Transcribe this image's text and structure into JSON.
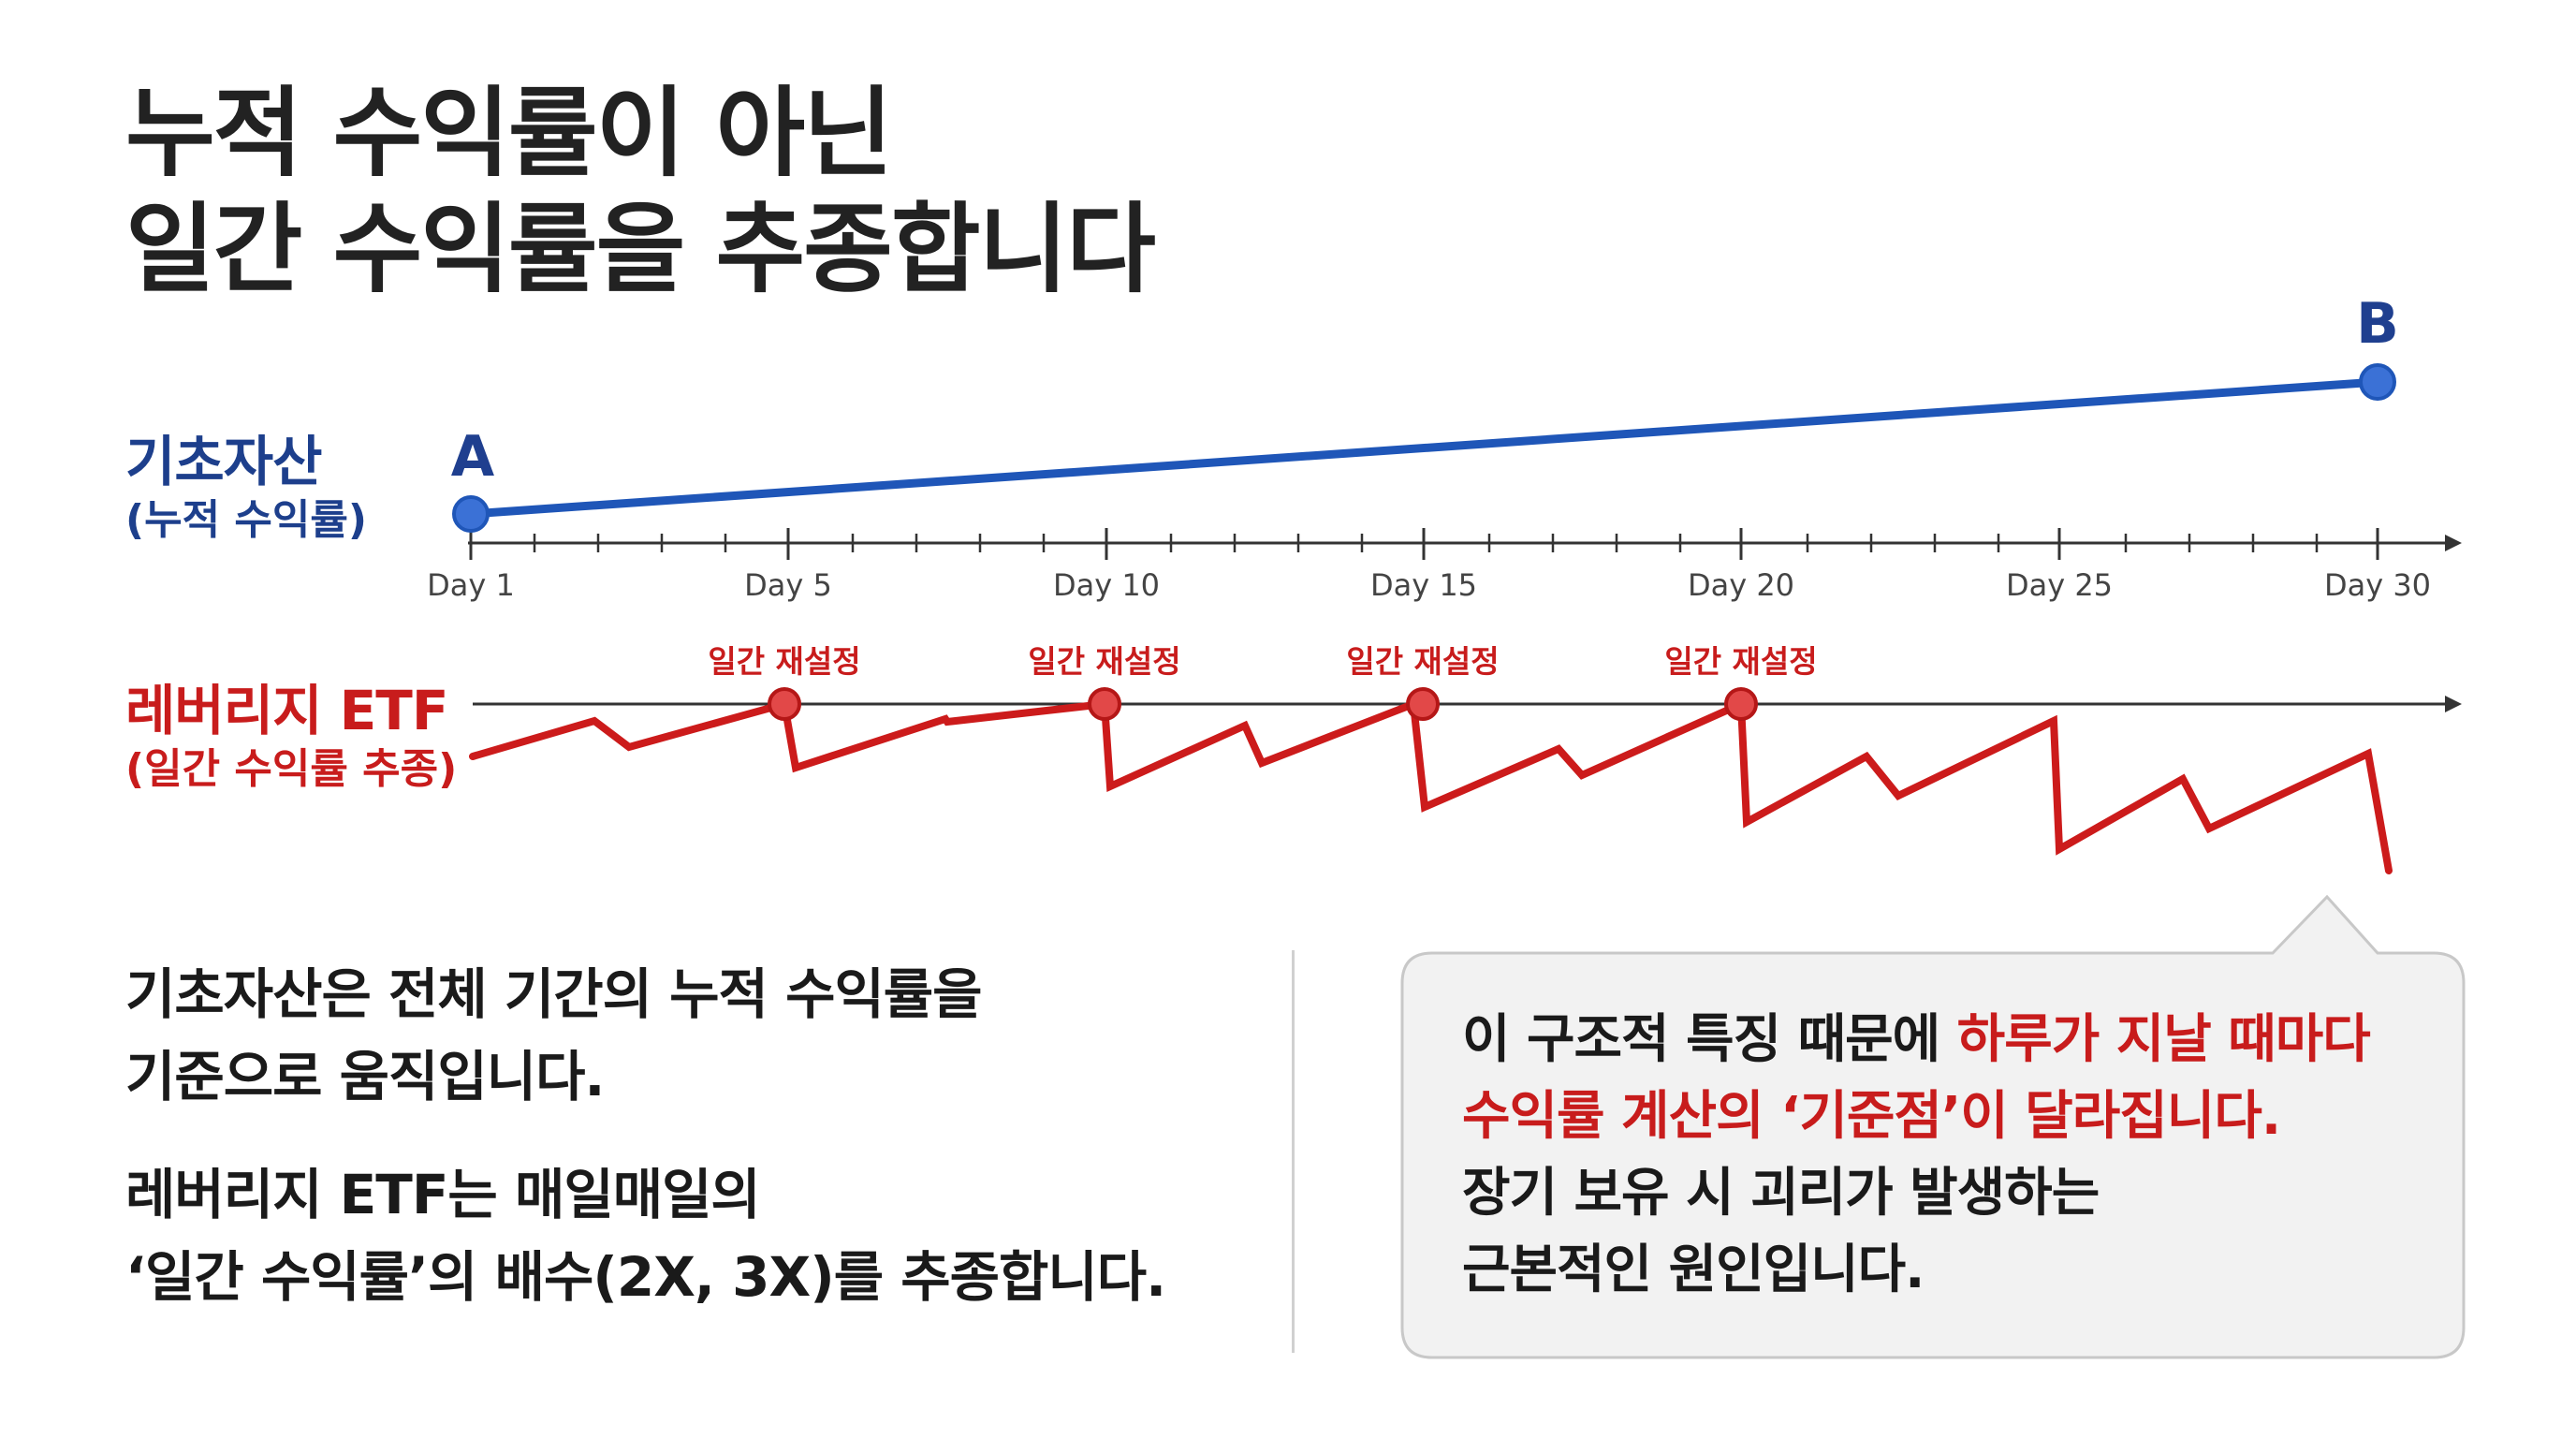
{
  "title": {
    "line1": "누적 수익률이 아닌",
    "line2": "일간 수익률을 추종합니다"
  },
  "asset_row": {
    "label": "기초자산",
    "sublabel": "(누적 수익률)",
    "point_a": "A",
    "point_b": "B",
    "color": "#1f56b8"
  },
  "axis": {
    "ticks": [
      "Day 1",
      "Day 5",
      "Day 10",
      "Day 15",
      "Day 20",
      "Day 25",
      "Day 30"
    ]
  },
  "etf_row": {
    "label": "레버리지 ETF",
    "sublabel": "(일간 수익률 추종)",
    "reset_label": "일간 재설정",
    "color": "#cc1b1b"
  },
  "left_text": {
    "p1_line1": "기초자산은 전체 기간의 누적 수익률을",
    "p1_line2": "기준으로 움직입니다.",
    "p2_line1": "레버리지 ETF는 매일매일의",
    "p2_line2": "‘일간 수익률’의 배수(2X, 3X)를 추종합니다."
  },
  "callout": {
    "line1_a": "이 구조적 특징 때문에 ",
    "line1_b": "하루가 지날 때마다",
    "line2": "수익률 계산의 ‘기준점’이 달라집니다.",
    "line3": "장기 보유 시 괴리가 발생하는",
    "line4": "근본적인 원인입니다."
  }
}
